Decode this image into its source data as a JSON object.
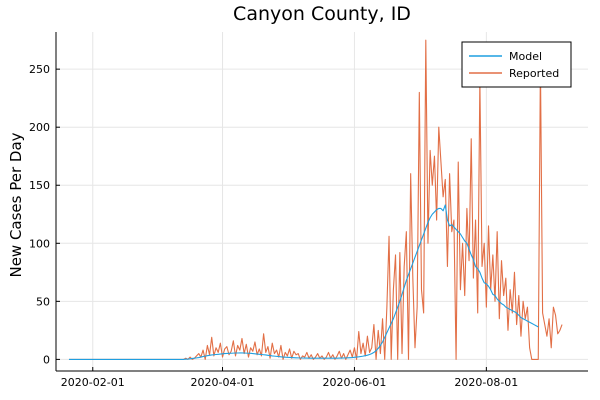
{
  "chart_data": {
    "type": "line",
    "title": "Canyon County, ID",
    "xlabel": "",
    "ylabel": "New Cases Per Day",
    "x_start": "2020-01-21",
    "xlim": [
      "2020-01-15",
      "2020-09-17"
    ],
    "ylim": [
      -10,
      282
    ],
    "x_ticks": [
      "2020-02-01",
      "2020-04-01",
      "2020-06-01",
      "2020-08-01"
    ],
    "y_ticks": [
      0,
      50,
      100,
      150,
      200,
      250
    ],
    "grid": true,
    "legend_position": "top-right",
    "series": [
      {
        "name": "Model",
        "color": "#1f9fe0",
        "values": [
          0,
          0,
          0,
          0,
          0,
          0,
          0,
          0,
          0,
          0,
          0,
          0,
          0,
          0,
          0,
          0,
          0,
          0,
          0,
          0,
          0,
          0,
          0,
          0,
          0,
          0,
          0,
          0,
          0,
          0,
          0,
          0,
          0,
          0,
          0,
          0,
          0,
          0,
          0,
          0,
          0,
          0,
          0,
          0,
          0,
          0,
          0,
          0,
          0,
          0,
          0,
          0,
          0,
          0,
          0.2,
          0.3,
          0.5,
          0.8,
          1,
          1.3,
          1.6,
          2,
          2.4,
          2.8,
          3.2,
          3.5,
          3.8,
          4,
          4.2,
          4.4,
          4.6,
          4.8,
          5,
          5.1,
          5.2,
          5.3,
          5.4,
          5.5,
          5.5,
          5.6,
          5.6,
          5.5,
          5.4,
          5.3,
          5.2,
          5,
          4.8,
          4.6,
          4.4,
          4.2,
          4,
          3.8,
          3.5,
          3.3,
          3,
          2.8,
          2.6,
          2.4,
          2.2,
          2,
          1.9,
          1.8,
          1.7,
          1.6,
          1.5,
          1.4,
          1.3,
          1.2,
          1.2,
          1.1,
          1.1,
          1,
          1,
          1,
          1,
          1,
          1,
          1,
          1,
          1,
          1,
          1,
          1,
          1,
          1,
          1.1,
          1.1,
          1.2,
          1.3,
          1.4,
          1.5,
          1.6,
          1.8,
          2,
          2.2,
          2.5,
          2.8,
          3.2,
          3.6,
          4.2,
          5,
          6,
          7.5,
          9.5,
          12,
          15,
          19,
          23,
          27,
          31,
          35,
          40,
          45,
          50,
          56,
          62,
          68,
          73,
          78,
          83,
          88,
          93,
          98,
          103,
          108,
          113,
          118,
          122,
          125,
          127,
          129,
          130,
          130,
          128,
          133,
          120,
          115,
          116,
          114,
          112,
          110,
          108,
          105,
          102,
          100,
          95,
          90,
          86,
          80,
          78,
          75,
          70,
          66,
          65,
          63,
          60,
          56,
          55,
          52,
          50,
          48,
          47,
          45,
          44,
          43,
          42,
          41,
          40,
          38,
          36,
          35,
          34,
          33,
          32,
          31,
          30,
          29,
          28
        ]
      },
      {
        "name": "Reported",
        "color": "#e26f46",
        "values": [
          0,
          0,
          0,
          0,
          0,
          0,
          0,
          0,
          0,
          0,
          0,
          0,
          0,
          0,
          0,
          0,
          0,
          0,
          0,
          0,
          0,
          0,
          0,
          0,
          0,
          0,
          0,
          0,
          0,
          0,
          0,
          0,
          0,
          0,
          0,
          0,
          0,
          0,
          0,
          0,
          0,
          0,
          0,
          0,
          0,
          0,
          0,
          0,
          0,
          0,
          0,
          0,
          0,
          0,
          1,
          0,
          2,
          0,
          1,
          3,
          5,
          2,
          8,
          0,
          12,
          4,
          19,
          3,
          10,
          6,
          14,
          2,
          9,
          11,
          4,
          7,
          16,
          3,
          12,
          8,
          18,
          5,
          13,
          2,
          10,
          7,
          15,
          4,
          9,
          3,
          22,
          6,
          11,
          1,
          14,
          5,
          8,
          2,
          12,
          0,
          6,
          3,
          9,
          1,
          7,
          4,
          5,
          0,
          3,
          2,
          6,
          1,
          4,
          0,
          2,
          5,
          1,
          3,
          0,
          2,
          6,
          1,
          4,
          0,
          3,
          7,
          1,
          5,
          0,
          4,
          8,
          2,
          10,
          0,
          24,
          5,
          14,
          3,
          20,
          6,
          10,
          30,
          0,
          25,
          5,
          35,
          0,
          45,
          106,
          0,
          60,
          90,
          0,
          92,
          5,
          80,
          110,
          0,
          160,
          70,
          10,
          45,
          230,
          60,
          40,
          275,
          100,
          180,
          150,
          175,
          120,
          200,
          170,
          140,
          155,
          80,
          160,
          110,
          120,
          0,
          170,
          60,
          100,
          55,
          130,
          85,
          190,
          70,
          120,
          40,
          240,
          80,
          100,
          45,
          115,
          60,
          90,
          50,
          110,
          35,
          85,
          55,
          70,
          25,
          60,
          40,
          75,
          30,
          55,
          20,
          50,
          35,
          45,
          10,
          0,
          0,
          0,
          0,
          255,
          40,
          30,
          20,
          35,
          10,
          45,
          38,
          22,
          25,
          30
        ]
      }
    ]
  }
}
